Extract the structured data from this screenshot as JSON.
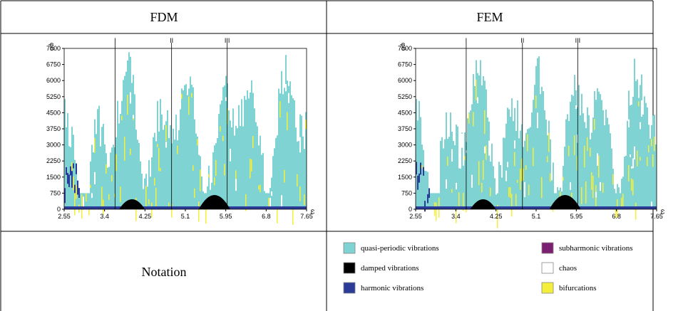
{
  "table": {
    "header": [
      "FDM",
      "FEM"
    ],
    "plots": [
      {
        "ylabel": "φ0",
        "xlabel": "ω",
        "xlim": [
          2.55,
          7.65
        ],
        "ylim": [
          0,
          7500
        ],
        "xticks": [
          2.55,
          3.4,
          4.25,
          5.1,
          5.95,
          6.8,
          7.65
        ],
        "yticks": [
          0,
          750,
          1500,
          2250,
          3000,
          3750,
          4500,
          5250,
          6000,
          6750,
          7500
        ],
        "regions": [
          {
            "label": "I",
            "x": 3.62
          },
          {
            "label": "II",
            "x": 4.81
          },
          {
            "label": "III",
            "x": 5.98
          }
        ]
      },
      {
        "ylabel": "φ0",
        "xlabel": "ω",
        "xlim": [
          2.55,
          7.65
        ],
        "ylim": [
          0,
          7500
        ],
        "xticks": [
          2.55,
          3.4,
          4.25,
          5.1,
          5.95,
          6.8,
          7.65
        ],
        "yticks": [
          0,
          750,
          1500,
          2250,
          3000,
          3750,
          4500,
          5250,
          6000,
          6750,
          7500
        ],
        "regions": [
          {
            "label": "I",
            "x": 3.62
          },
          {
            "label": "II",
            "x": 4.81
          },
          {
            "label": "III",
            "x": 5.98
          }
        ]
      }
    ],
    "notation_label": "Notation",
    "notation": [
      {
        "label": "quasi-periodic vibrations",
        "color": "#7fd3d3"
      },
      {
        "label": "subharmonic vibrations",
        "color": "#7b1f70"
      },
      {
        "label": "damped vibrations",
        "color": "#000000"
      },
      {
        "label": "chaos",
        "color": "#ffffff"
      },
      {
        "label": "harmonic vibrations",
        "color": "#2b3c98"
      },
      {
        "label": "bifurcations",
        "color": "#f4ef3a"
      }
    ]
  }
}
